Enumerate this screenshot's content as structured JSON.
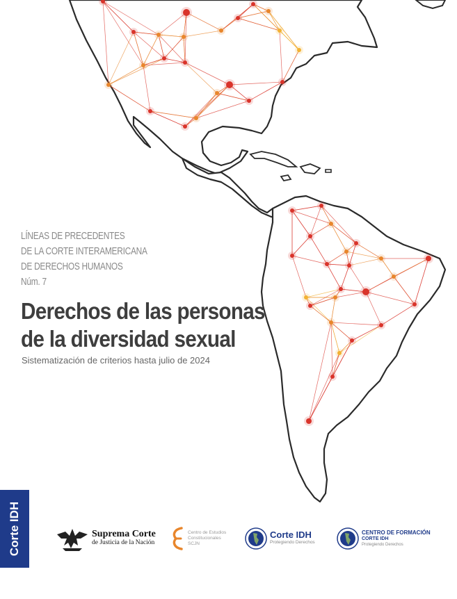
{
  "series": {
    "line1": "LÍNEAS DE PRECEDENTES",
    "line2": "DE LA CORTE INTERAMERICANA",
    "line3": "DE DERECHOS HUMANOS",
    "number": "Núm. 7"
  },
  "title": {
    "line1": "Derechos de las personas",
    "line2": "de la diversidad sexual"
  },
  "subtitle": "Sistematización de criterios hasta julio de 2024",
  "sidebar_label": "Corte IDH",
  "logos": {
    "scjn": {
      "line1": "Suprema Corte",
      "line2": "de Justicia de la Nación"
    },
    "cec": {
      "line1": "Centro de Estudios",
      "line2": "Constitucionales",
      "line3": "SCJN"
    },
    "corte_idh": {
      "line1": "Corte IDH",
      "line2": "Protegiendo Derechos"
    },
    "centro_formacion": {
      "line1": "CENTRO DE FORMACIÓN",
      "line2": "CORTE IDH",
      "line3": "Protegiendo Derechos"
    }
  },
  "colors": {
    "red": "#d9342b",
    "orange": "#e8862c",
    "yellow": "#f2b233",
    "navy": "#1f3b8a",
    "outline": "#2a2a2a"
  },
  "network_nodes": [
    {
      "name": "na-1",
      "color": "red"
    },
    {
      "name": "na-2",
      "color": "red"
    },
    {
      "name": "na-3",
      "color": "orange"
    },
    {
      "name": "na-4",
      "color": "red"
    },
    {
      "name": "na-5",
      "color": "orange"
    },
    {
      "name": "na-6",
      "color": "red"
    },
    {
      "name": "na-7",
      "color": "red"
    },
    {
      "name": "na-8",
      "color": "orange"
    },
    {
      "name": "na-9",
      "color": "red"
    },
    {
      "name": "na-10",
      "color": "yellow"
    },
    {
      "name": "na-11",
      "color": "orange"
    },
    {
      "name": "na-12",
      "color": "red"
    },
    {
      "name": "na-13",
      "color": "orange"
    },
    {
      "name": "na-14",
      "color": "red"
    },
    {
      "name": "na-15",
      "color": "orange"
    },
    {
      "name": "na-16",
      "color": "red"
    },
    {
      "name": "na-17",
      "color": "yellow"
    },
    {
      "name": "na-18",
      "color": "red"
    },
    {
      "name": "na-19",
      "color": "orange"
    },
    {
      "name": "na-20",
      "color": "red"
    },
    {
      "name": "na-21",
      "color": "red"
    },
    {
      "name": "na-22",
      "color": "orange"
    },
    {
      "name": "sa-1",
      "color": "red"
    },
    {
      "name": "sa-2",
      "color": "red"
    },
    {
      "name": "sa-3",
      "color": "orange"
    },
    {
      "name": "sa-4",
      "color": "red"
    },
    {
      "name": "sa-5",
      "color": "red"
    },
    {
      "name": "sa-6",
      "color": "orange"
    },
    {
      "name": "sa-7",
      "color": "red"
    },
    {
      "name": "sa-8",
      "color": "red"
    },
    {
      "name": "sa-9",
      "color": "orange"
    },
    {
      "name": "sa-10",
      "color": "red"
    },
    {
      "name": "sa-11",
      "color": "red"
    },
    {
      "name": "sa-12",
      "color": "orange"
    },
    {
      "name": "sa-13",
      "color": "red"
    },
    {
      "name": "sa-14",
      "color": "yellow"
    },
    {
      "name": "sa-15",
      "color": "red"
    },
    {
      "name": "sa-16",
      "color": "orange"
    },
    {
      "name": "sa-17",
      "color": "red"
    },
    {
      "name": "sa-18",
      "color": "red"
    },
    {
      "name": "sa-19",
      "color": "orange"
    },
    {
      "name": "sa-20",
      "color": "red"
    },
    {
      "name": "sa-21",
      "color": "red"
    },
    {
      "name": "sa-22",
      "color": "yellow"
    },
    {
      "name": "sa-23",
      "color": "red"
    },
    {
      "name": "sa-24",
      "color": "red"
    }
  ]
}
